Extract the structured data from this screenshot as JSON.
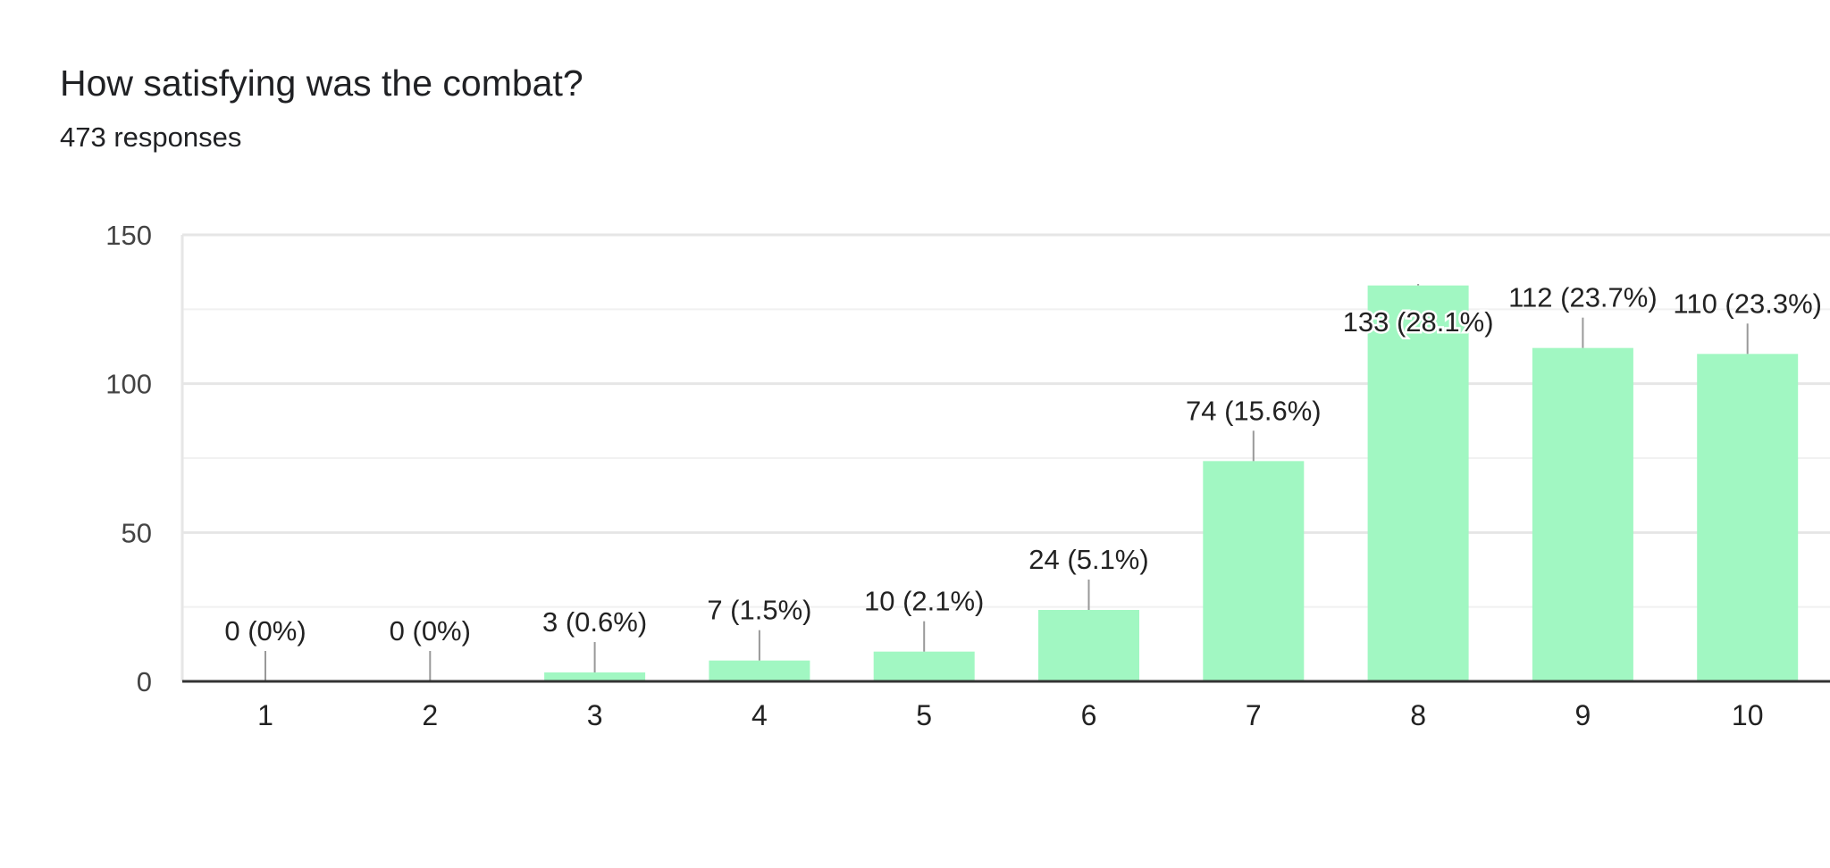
{
  "header": {
    "title": "How satisfying was the combat?",
    "subtitle": "473 responses"
  },
  "chart_data": {
    "type": "bar",
    "title": "How satisfying was the combat?",
    "subtitle": "473 responses",
    "xlabel": "",
    "ylabel": "",
    "categories": [
      "1",
      "2",
      "3",
      "4",
      "5",
      "6",
      "7",
      "8",
      "9",
      "10"
    ],
    "values": [
      0,
      0,
      3,
      7,
      10,
      24,
      74,
      133,
      112,
      110
    ],
    "data_labels": [
      "0 (0%)",
      "0 (0%)",
      "3 (0.6%)",
      "7 (1.5%)",
      "10 (2.1%)",
      "24 (5.1%)",
      "74 (15.6%)",
      "133 (28.1%)",
      "112 (23.7%)",
      "110 (23.3%)"
    ],
    "ylim": [
      0,
      150
    ],
    "yticks": [
      "0",
      "50",
      "100",
      "150"
    ],
    "grid": true,
    "bar_color": "#a1f7c2"
  }
}
